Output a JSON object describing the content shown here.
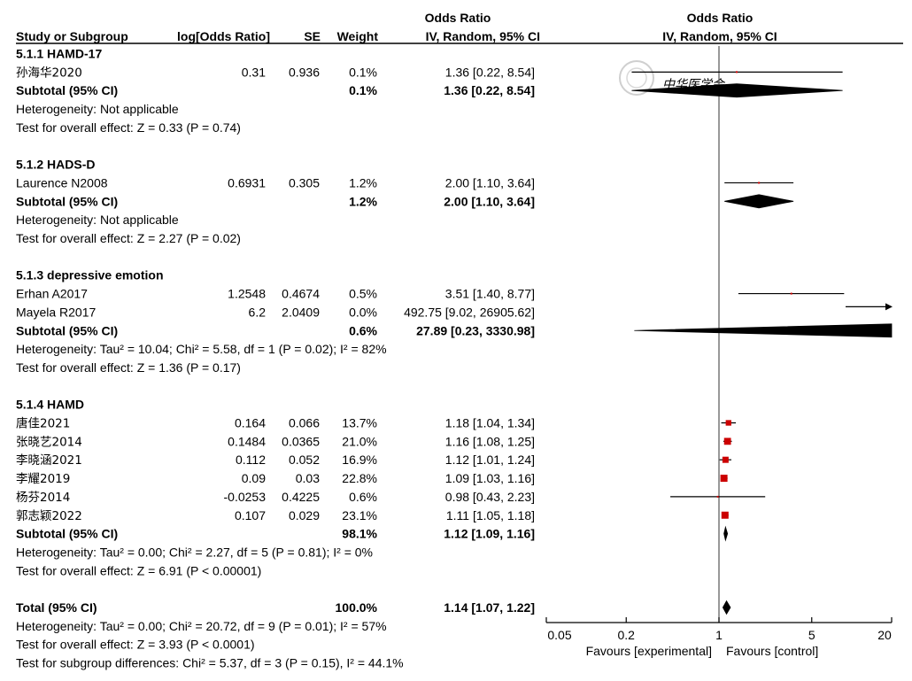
{
  "chart_data": {
    "type": "forest",
    "headers": {
      "study": "Study or Subgroup",
      "logor": "log[Odds Ratio]",
      "se": "SE",
      "weight": "Weight",
      "ci_top": "Odds Ratio",
      "ci": "IV, Random, 95% CI",
      "plot_top": "Odds Ratio",
      "plot": "IV, Random, 95% CI"
    },
    "x_axis": {
      "scale": "log",
      "ticks": [
        0.05,
        0.2,
        1,
        5,
        20
      ],
      "tick_labels": [
        "0.05",
        "0.2",
        "1",
        "5",
        "20"
      ],
      "left_label": "Favours [experimental]",
      "right_label": "Favours [control]"
    },
    "colors": {
      "study_marker": "#cc0000",
      "line": "#000000",
      "null_line": "#555555"
    },
    "watermark": "中华医学会",
    "rows": [
      {
        "kind": "group",
        "label": "5.1.1 HAMD-17"
      },
      {
        "kind": "study",
        "label": "孙海华2020",
        "cjk": true,
        "logor": "0.31",
        "se": "0.936",
        "weight": "0.1%",
        "ci_text": "1.36 [0.22, 8.54]",
        "or": 1.36,
        "lo": 0.22,
        "hi": 8.54,
        "w": 0.1
      },
      {
        "kind": "subtotal",
        "label": "Subtotal (95% CI)",
        "weight": "0.1%",
        "ci_text": "1.36 [0.22, 8.54]",
        "or": 1.36,
        "lo": 0.22,
        "hi": 8.54
      },
      {
        "kind": "text",
        "label": "Heterogeneity: Not applicable"
      },
      {
        "kind": "text",
        "label": "Test for overall effect: Z = 0.33 (P = 0.74)"
      },
      {
        "kind": "blank"
      },
      {
        "kind": "group",
        "label": "5.1.2 HADS-D"
      },
      {
        "kind": "study",
        "label": "Laurence N2008",
        "logor": "0.6931",
        "se": "0.305",
        "weight": "1.2%",
        "ci_text": "2.00 [1.10, 3.64]",
        "or": 2.0,
        "lo": 1.1,
        "hi": 3.64,
        "w": 1.2
      },
      {
        "kind": "subtotal",
        "label": "Subtotal (95% CI)",
        "weight": "1.2%",
        "ci_text": "2.00 [1.10, 3.64]",
        "or": 2.0,
        "lo": 1.1,
        "hi": 3.64
      },
      {
        "kind": "text",
        "label": "Heterogeneity: Not applicable"
      },
      {
        "kind": "text",
        "label": "Test for overall effect: Z = 2.27 (P = 0.02)"
      },
      {
        "kind": "blank"
      },
      {
        "kind": "group",
        "label": "5.1.3 depressive emotion"
      },
      {
        "kind": "study",
        "label": "Erhan A2017",
        "logor": "1.2548",
        "se": "0.4674",
        "weight": "0.5%",
        "ci_text": "3.51 [1.40, 8.77]",
        "or": 3.51,
        "lo": 1.4,
        "hi": 8.77,
        "w": 0.5
      },
      {
        "kind": "study",
        "label": "Mayela R2017",
        "logor": "6.2",
        "se": "2.0409",
        "weight": "0.0%",
        "ci_text": "492.75 [9.02, 26905.62]",
        "or": 492.75,
        "lo": 9.02,
        "hi": 26905.62,
        "w": 0.0
      },
      {
        "kind": "subtotal",
        "label": "Subtotal (95% CI)",
        "weight": "0.6%",
        "ci_text": "27.89 [0.23, 3330.98]",
        "or": 27.89,
        "lo": 0.23,
        "hi": 3330.98
      },
      {
        "kind": "text",
        "label": "Heterogeneity: Tau² = 10.04; Chi² = 5.58, df = 1 (P = 0.02); I² = 82%"
      },
      {
        "kind": "text",
        "label": "Test for overall effect: Z = 1.36 (P = 0.17)"
      },
      {
        "kind": "blank"
      },
      {
        "kind": "group",
        "label": "5.1.4 HAMD"
      },
      {
        "kind": "study",
        "label": "唐佳2021",
        "cjk": true,
        "logor": "0.164",
        "se": "0.066",
        "weight": "13.7%",
        "ci_text": "1.18 [1.04, 1.34]",
        "or": 1.18,
        "lo": 1.04,
        "hi": 1.34,
        "w": 13.7
      },
      {
        "kind": "study",
        "label": "张晓艺2014",
        "cjk": true,
        "logor": "0.1484",
        "se": "0.0365",
        "weight": "21.0%",
        "ci_text": "1.16 [1.08, 1.25]",
        "or": 1.16,
        "lo": 1.08,
        "hi": 1.25,
        "w": 21.0
      },
      {
        "kind": "study",
        "label": "李晓涵2021",
        "cjk": true,
        "logor": "0.112",
        "se": "0.052",
        "weight": "16.9%",
        "ci_text": "1.12 [1.01, 1.24]",
        "or": 1.12,
        "lo": 1.01,
        "hi": 1.24,
        "w": 16.9
      },
      {
        "kind": "study",
        "label": "李耀2019",
        "cjk": true,
        "logor": "0.09",
        "se": "0.03",
        "weight": "22.8%",
        "ci_text": "1.09 [1.03, 1.16]",
        "or": 1.09,
        "lo": 1.03,
        "hi": 1.16,
        "w": 22.8
      },
      {
        "kind": "study",
        "label": "杨芬2014",
        "cjk": true,
        "logor": "-0.0253",
        "se": "0.4225",
        "weight": "0.6%",
        "ci_text": "0.98 [0.43, 2.23]",
        "or": 0.98,
        "lo": 0.43,
        "hi": 2.23,
        "w": 0.6
      },
      {
        "kind": "study",
        "label": "郭志颖2022",
        "cjk": true,
        "logor": "0.107",
        "se": "0.029",
        "weight": "23.1%",
        "ci_text": "1.11 [1.05, 1.18]",
        "or": 1.11,
        "lo": 1.05,
        "hi": 1.18,
        "w": 23.1
      },
      {
        "kind": "subtotal",
        "label": "Subtotal (95% CI)",
        "weight": "98.1%",
        "ci_text": "1.12 [1.09, 1.16]",
        "or": 1.12,
        "lo": 1.09,
        "hi": 1.16
      },
      {
        "kind": "text",
        "label": "Heterogeneity: Tau² = 0.00; Chi² = 2.27, df = 5 (P = 0.81); I² = 0%"
      },
      {
        "kind": "text",
        "label": "Test for overall effect: Z = 6.91 (P < 0.00001)"
      },
      {
        "kind": "blank"
      },
      {
        "kind": "total",
        "label": "Total (95% CI)",
        "weight": "100.0%",
        "ci_text": "1.14 [1.07, 1.22]",
        "or": 1.14,
        "lo": 1.07,
        "hi": 1.22
      },
      {
        "kind": "text",
        "label": "Heterogeneity: Tau² = 0.00; Chi² = 20.72, df = 9 (P = 0.01); I² = 57%"
      },
      {
        "kind": "text",
        "label": "Test for overall effect: Z = 3.93 (P < 0.0001)"
      },
      {
        "kind": "text",
        "label": "Test for subgroup differences: Chi² = 5.37, df = 3 (P = 0.15), I² = 44.1%"
      }
    ]
  }
}
